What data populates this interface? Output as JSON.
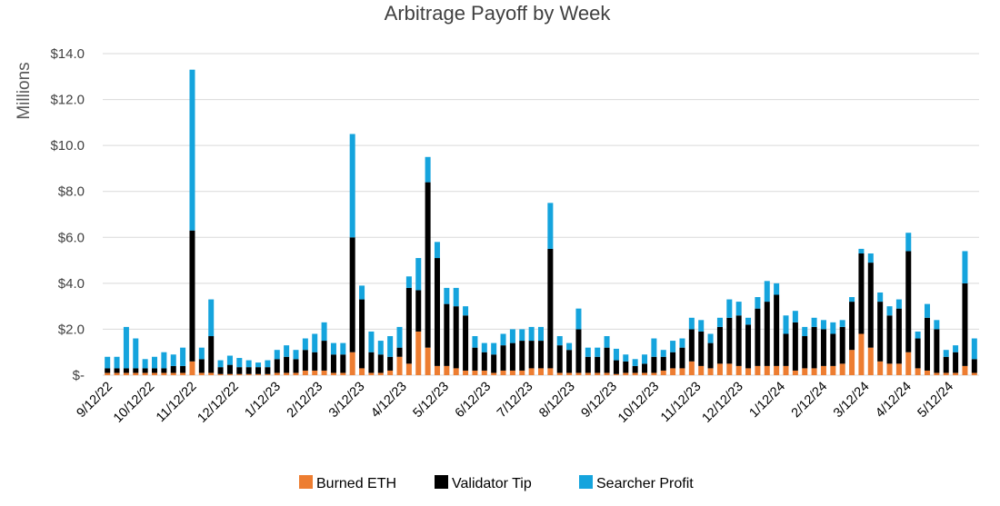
{
  "chart_data": {
    "type": "bar",
    "stacked": true,
    "title": "Arbitrage Payoff by Week",
    "ylabel": "Millions",
    "xlabel": "",
    "ylim": [
      0,
      14
    ],
    "yticks": [
      0,
      2,
      4,
      6,
      8,
      10,
      12,
      14
    ],
    "ytick_labels": [
      "$-",
      "$2.0",
      "$4.0",
      "$6.0",
      "$8.0",
      "$10.0",
      "$12.0",
      "$14.0"
    ],
    "xtick_labels": [
      "9/12/22",
      "10/12/22",
      "11/12/22",
      "12/12/22",
      "1/12/23",
      "2/12/23",
      "3/12/23",
      "4/12/23",
      "5/12/23",
      "6/12/23",
      "7/12/23",
      "8/12/23",
      "9/12/23",
      "10/12/23",
      "11/12/23",
      "12/12/23",
      "1/12/24",
      "2/12/24",
      "3/12/24",
      "4/12/24",
      "5/12/24"
    ],
    "grid": true,
    "legend_position": "bottom",
    "series": [
      {
        "name": "Burned ETH",
        "color": "#ED7D31",
        "values": [
          0.1,
          0.1,
          0.1,
          0.1,
          0.1,
          0.1,
          0.1,
          0.1,
          0.1,
          0.6,
          0.1,
          0.1,
          0.05,
          0.05,
          0.05,
          0.05,
          0.05,
          0.05,
          0.1,
          0.1,
          0.1,
          0.2,
          0.2,
          0.2,
          0.1,
          0.1,
          1.0,
          0.3,
          0.1,
          0.1,
          0.2,
          0.8,
          0.5,
          1.9,
          1.2,
          0.4,
          0.4,
          0.3,
          0.2,
          0.2,
          0.2,
          0.1,
          0.2,
          0.2,
          0.2,
          0.3,
          0.3,
          0.3,
          0.1,
          0.1,
          0.1,
          0.1,
          0.1,
          0.1,
          0.05,
          0.1,
          0.1,
          0.1,
          0.1,
          0.2,
          0.3,
          0.3,
          0.6,
          0.4,
          0.3,
          0.5,
          0.5,
          0.4,
          0.3,
          0.4,
          0.4,
          0.4,
          0.4,
          0.2,
          0.3,
          0.3,
          0.4,
          0.4,
          0.5,
          1.1,
          1.8,
          1.2,
          0.6,
          0.5,
          0.5,
          1.0,
          0.3,
          0.2,
          0.1,
          0.1,
          0.1,
          0.4,
          0.1
        ]
      },
      {
        "name": "Validator Tip",
        "color": "#000000",
        "values": [
          0.2,
          0.2,
          0.2,
          0.2,
          0.2,
          0.2,
          0.2,
          0.3,
          0.3,
          5.7,
          0.6,
          1.6,
          0.3,
          0.4,
          0.3,
          0.3,
          0.3,
          0.3,
          0.6,
          0.7,
          0.6,
          0.9,
          0.8,
          1.3,
          0.8,
          0.8,
          5.0,
          3.0,
          0.9,
          0.8,
          0.6,
          0.4,
          3.3,
          1.8,
          7.2,
          4.7,
          2.7,
          2.7,
          2.4,
          1.0,
          0.8,
          0.8,
          1.1,
          1.2,
          1.3,
          1.2,
          1.2,
          5.2,
          1.2,
          1.0,
          1.9,
          0.7,
          0.7,
          1.1,
          0.6,
          0.5,
          0.3,
          0.4,
          0.7,
          0.6,
          0.7,
          0.9,
          1.4,
          1.5,
          1.1,
          1.6,
          2.0,
          2.2,
          1.9,
          2.5,
          2.8,
          3.1,
          1.4,
          2.1,
          1.4,
          1.8,
          1.6,
          1.4,
          1.6,
          2.1,
          3.5,
          3.7,
          2.6,
          2.1,
          2.4,
          4.4,
          1.3,
          2.3,
          1.9,
          0.7,
          0.9,
          3.6,
          0.6
        ]
      },
      {
        "name": "Searcher Profit",
        "color": "#15A4DD",
        "values": [
          0.5,
          0.5,
          1.8,
          1.3,
          0.4,
          0.5,
          0.7,
          0.5,
          0.8,
          7.0,
          0.5,
          1.6,
          0.3,
          0.4,
          0.4,
          0.3,
          0.2,
          0.3,
          0.4,
          0.5,
          0.4,
          0.5,
          0.8,
          0.8,
          0.5,
          0.5,
          4.5,
          0.6,
          0.9,
          0.6,
          0.9,
          0.9,
          0.5,
          1.4,
          1.1,
          0.7,
          0.7,
          0.8,
          0.4,
          0.5,
          0.4,
          0.5,
          0.5,
          0.6,
          0.5,
          0.6,
          0.6,
          2.0,
          0.4,
          0.3,
          0.9,
          0.4,
          0.4,
          0.5,
          0.5,
          0.3,
          0.3,
          0.4,
          0.8,
          0.3,
          0.5,
          0.4,
          0.5,
          0.5,
          0.4,
          0.4,
          0.8,
          0.6,
          0.3,
          0.5,
          0.9,
          0.5,
          0.8,
          0.5,
          0.4,
          0.4,
          0.4,
          0.5,
          0.3,
          0.2,
          0.2,
          0.4,
          0.4,
          0.4,
          0.4,
          0.8,
          0.3,
          0.6,
          0.4,
          0.3,
          0.3,
          1.4,
          0.9
        ]
      }
    ]
  }
}
